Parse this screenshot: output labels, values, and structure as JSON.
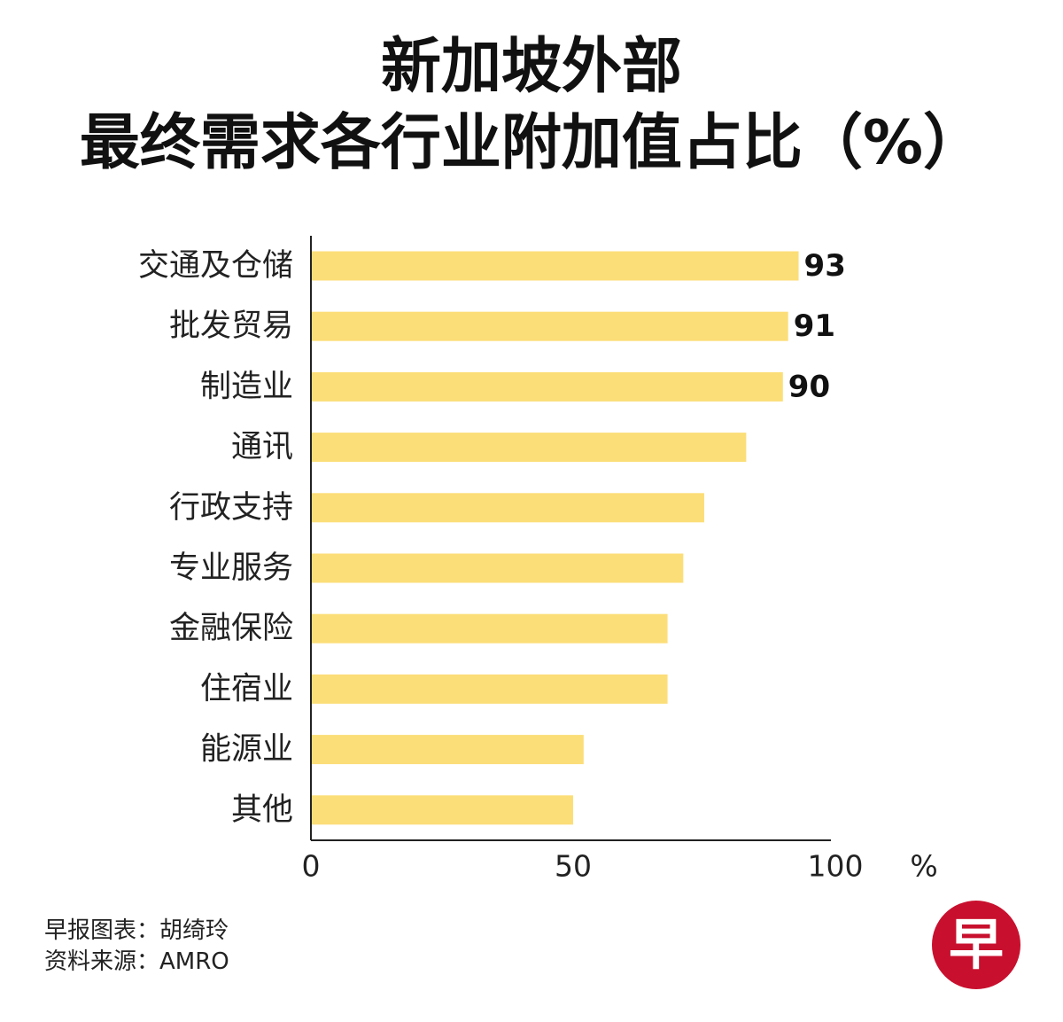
{
  "title_line1": "新加坡外部",
  "title_line2": "最终需求各行业附加值占比（%）",
  "colors": {
    "bar": "#FCDE78",
    "axis": "#222222",
    "logo": "#C8102E"
  },
  "chart_data": {
    "type": "bar",
    "orientation": "horizontal",
    "categories": [
      "交通及仓储",
      "批发贸易",
      "制造业",
      "通讯",
      "行政支持",
      "专业服务",
      "金融保险",
      "住宿业",
      "能源业",
      "其他"
    ],
    "values": [
      93,
      91,
      90,
      83,
      75,
      71,
      68,
      68,
      52,
      50
    ],
    "data_labels": [
      "93",
      "91",
      "90",
      "",
      "",
      "",
      "",
      "",
      "",
      ""
    ],
    "x_ticks": [
      "0",
      "50",
      "100"
    ],
    "x_unit": "%",
    "xlim": [
      0,
      100
    ],
    "grid": false,
    "legend": "none"
  },
  "credits": {
    "line1": "早报图表：胡绮玲",
    "line2": "资料来源：AMRO"
  },
  "logo": {
    "text": "早"
  }
}
